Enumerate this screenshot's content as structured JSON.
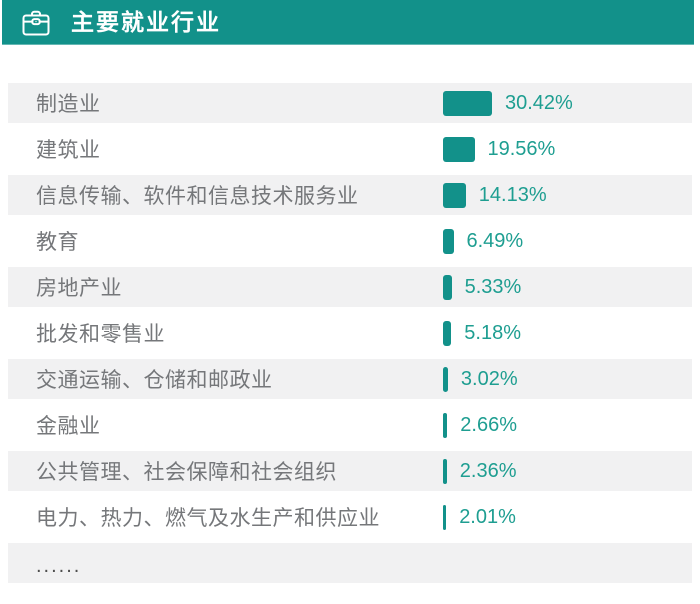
{
  "header": {
    "title": "主要就业行业",
    "icon": "briefcase-icon"
  },
  "colors": {
    "header_bg": "#12918A",
    "bar_fill": "#12918A",
    "percent_text": "#1E9E91",
    "row_alt_bg": "#F1F1F2",
    "label_text": "#75777A",
    "ellipsis_text": "#4E4E4E",
    "header_title_text": "#FFFFFF"
  },
  "chart_data": {
    "type": "bar",
    "orientation": "horizontal",
    "title": "主要就业行业",
    "xlabel": "",
    "ylabel": "",
    "value_unit": "%",
    "xlim": [
      0,
      31
    ],
    "grid": false,
    "legend": "none",
    "categories": [
      "制造业",
      "建筑业",
      "信息传输、软件和信息技术服务业",
      "教育",
      "房地产业",
      "批发和零售业",
      "交通运输、仓储和邮政业",
      "金融业",
      "公共管理、社会保障和社会组织",
      "电力、热力、燃气及水生产和供应业"
    ],
    "values": [
      30.42,
      19.56,
      14.13,
      6.49,
      5.33,
      5.18,
      3.02,
      2.66,
      2.36,
      2.01
    ],
    "display_values": [
      "30.42%",
      "19.56%",
      "14.13%",
      "6.49%",
      "5.33%",
      "5.18%",
      "3.02%",
      "2.66%",
      "2.36%",
      "2.01%"
    ],
    "truncation_indicator": "......"
  }
}
